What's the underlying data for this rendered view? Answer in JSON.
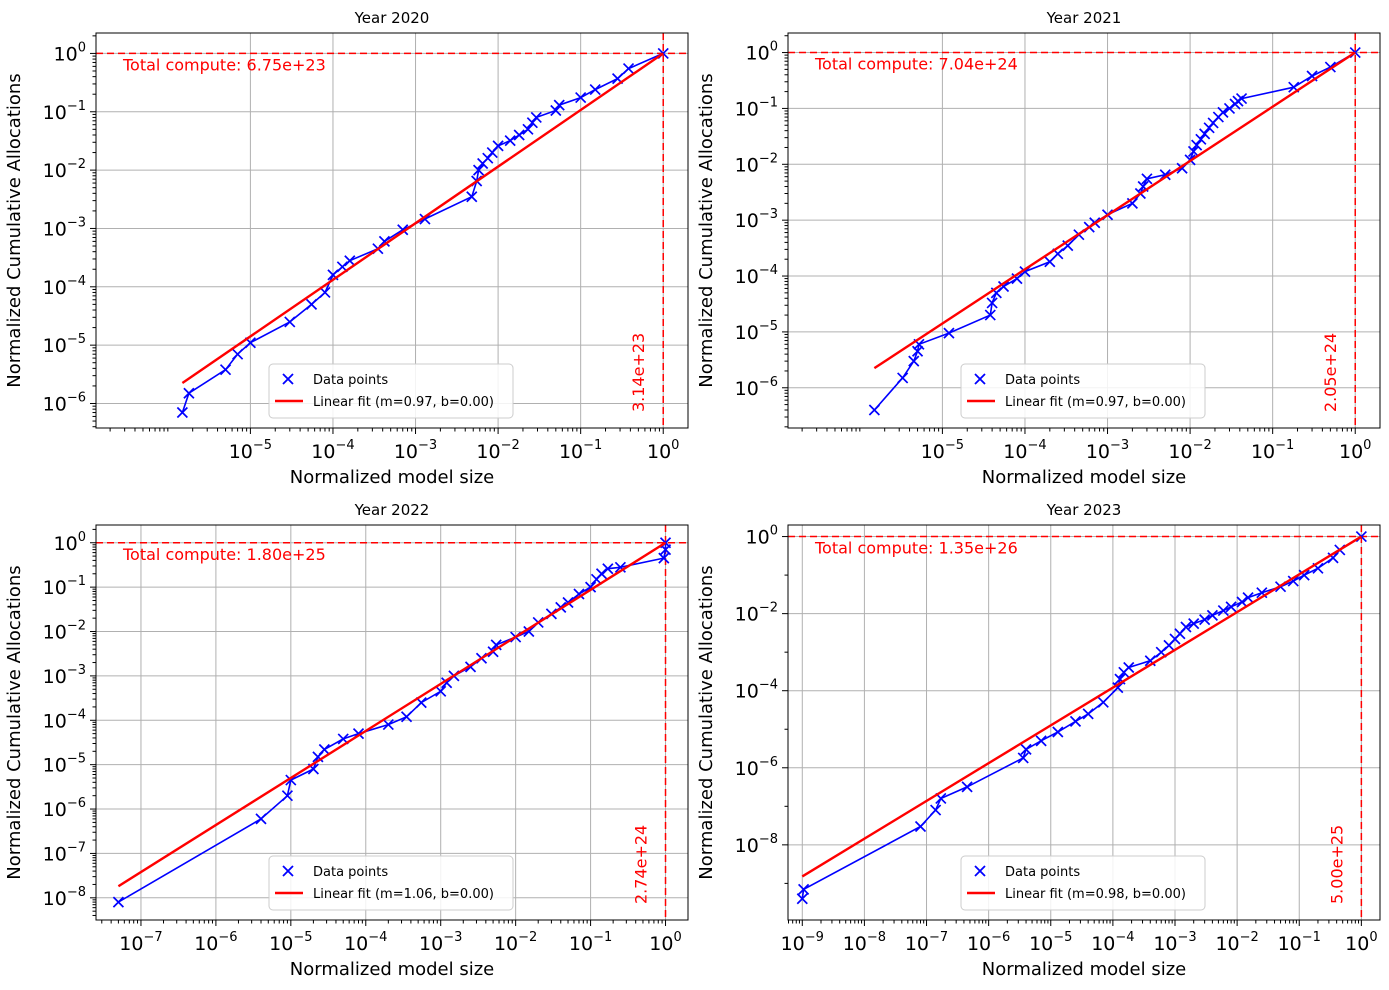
{
  "colors": {
    "data": "#0000ff",
    "fit": "#ff0000",
    "grid": "#b0b0b0",
    "axes": "#000000"
  },
  "chart_data": [
    {
      "type": "scatter",
      "title": "Year 2020",
      "xlabel": "Normalized model size",
      "ylabel": "Normalized Cumulative Allocations",
      "xscale": "log",
      "yscale": "log",
      "xlim_exp": [
        -6.87,
        0.3
      ],
      "ylim_exp": [
        -6.42,
        0.35
      ],
      "xticks_exp": [
        -5,
        -4,
        -3,
        -2,
        -1,
        0
      ],
      "yticks_exp": [
        -6,
        -5,
        -4,
        -3,
        -2,
        -1,
        0
      ],
      "grid": true,
      "series": [
        {
          "name": "Data points",
          "marker": "x",
          "x": [
            1.5e-06,
            1.8e-06,
            5e-06,
            7e-06,
            1e-05,
            3e-05,
            5.5e-05,
            8e-05,
            0.0001,
            0.00013,
            0.00016,
            0.00035,
            0.00042,
            0.0007,
            0.0013,
            0.0048,
            0.0055,
            0.0058,
            0.0065,
            0.0075,
            0.0085,
            0.01,
            0.014,
            0.018,
            0.023,
            0.026,
            0.029,
            0.05,
            0.055,
            0.1,
            0.15,
            0.28,
            0.38,
            1.0
          ],
          "y": [
            7e-07,
            1.5e-06,
            3.8e-06,
            7e-06,
            1.1e-05,
            2.5e-05,
            5e-05,
            8e-05,
            0.00016,
            0.00022,
            0.00028,
            0.00045,
            0.0006,
            0.00095,
            0.00145,
            0.0035,
            0.0065,
            0.01,
            0.013,
            0.016,
            0.02,
            0.026,
            0.032,
            0.04,
            0.05,
            0.065,
            0.08,
            0.105,
            0.13,
            0.175,
            0.24,
            0.37,
            0.55,
            1.0
          ]
        },
        {
          "name": "Linear fit (m=0.97, b=0.00)",
          "m": 0.97,
          "b": 0.0,
          "x_range": [
            1.5e-06,
            1.0
          ]
        }
      ],
      "hline": 1.0,
      "vline": 1.0,
      "total_compute_label": "Total compute: 6.75e+23",
      "vline_label": "3.14e+23",
      "legend": [
        "Data points",
        "Linear fit (m=0.97, b=0.00)"
      ],
      "legend_position": "lower-center"
    },
    {
      "type": "scatter",
      "title": "Year 2021",
      "xlabel": "Normalized model size",
      "ylabel": "Normalized Cumulative Allocations",
      "xscale": "log",
      "yscale": "log",
      "xlim_exp": [
        -6.87,
        0.3
      ],
      "ylim_exp": [
        -6.72,
        0.35
      ],
      "xticks_exp": [
        -5,
        -4,
        -3,
        -2,
        -1,
        0
      ],
      "yticks_exp": [
        -6,
        -5,
        -4,
        -3,
        -2,
        -1,
        0
      ],
      "grid": true,
      "series": [
        {
          "name": "Data points",
          "marker": "x",
          "x": [
            1.5e-06,
            3.3e-06,
            4.5e-06,
            5e-06,
            5.2e-06,
            1.2e-05,
            3.8e-05,
            4e-05,
            4.5e-05,
            5.5e-05,
            8e-05,
            0.0001,
            0.0002,
            0.00025,
            0.00033,
            0.00045,
            0.0006,
            0.0007,
            0.001,
            0.002,
            0.0025,
            0.0027,
            0.003,
            0.005,
            0.008,
            0.01,
            0.011,
            0.012,
            0.0135,
            0.015,
            0.017,
            0.019,
            0.022,
            0.025,
            0.03,
            0.035,
            0.038,
            0.042,
            0.18,
            0.3,
            0.5,
            1.0
          ],
          "y": [
            4e-07,
            1.5e-06,
            3e-06,
            4.5e-06,
            6e-06,
            9.5e-06,
            2e-05,
            3.3e-05,
            5e-05,
            6.5e-05,
            9e-05,
            0.00012,
            0.00018,
            0.00025,
            0.00035,
            0.00055,
            0.00075,
            0.0009,
            0.00125,
            0.002,
            0.003,
            0.004,
            0.0055,
            0.0065,
            0.0085,
            0.012,
            0.017,
            0.022,
            0.028,
            0.035,
            0.045,
            0.055,
            0.07,
            0.085,
            0.1,
            0.12,
            0.135,
            0.15,
            0.24,
            0.38,
            0.55,
            1.0
          ]
        },
        {
          "name": "Linear fit (m=0.97, b=0.00)",
          "m": 0.97,
          "b": 0.0,
          "x_range": [
            1.5e-06,
            1.0
          ]
        }
      ],
      "hline": 1.0,
      "vline": 1.0,
      "total_compute_label": "Total compute: 7.04e+24",
      "vline_label": "2.05e+24",
      "legend": [
        "Data points",
        "Linear fit (m=0.97, b=0.00)"
      ],
      "legend_position": "lower-center"
    },
    {
      "type": "scatter",
      "title": "Year 2022",
      "xlabel": "Normalized model size",
      "ylabel": "Normalized Cumulative Allocations",
      "xscale": "log",
      "yscale": "log",
      "xlim_exp": [
        -7.6,
        0.3
      ],
      "ylim_exp": [
        -8.5,
        0.4
      ],
      "xticks_exp": [
        -7,
        -6,
        -5,
        -4,
        -3,
        -2,
        -1,
        0
      ],
      "yticks_exp": [
        -8,
        -7,
        -6,
        -5,
        -4,
        -3,
        -2,
        -1,
        0
      ],
      "grid": true,
      "series": [
        {
          "name": "Data points",
          "marker": "x",
          "x": [
            5e-08,
            4e-06,
            9e-06,
            1e-05,
            2e-05,
            2.3e-05,
            2.8e-05,
            5e-05,
            8e-05,
            0.0002,
            0.00035,
            0.00055,
            0.001,
            0.0012,
            0.0015,
            0.0025,
            0.0035,
            0.005,
            0.0055,
            0.01,
            0.015,
            0.02,
            0.03,
            0.04,
            0.05,
            0.07,
            0.1,
            0.12,
            0.14,
            0.17,
            0.25,
            0.95,
            1.0,
            1.0
          ],
          "y": [
            8e-09,
            6e-07,
            2e-06,
            4.5e-06,
            8e-06,
            1.5e-05,
            2.2e-05,
            3.8e-05,
            5e-05,
            8e-05,
            0.00012,
            0.00025,
            0.00045,
            0.0007,
            0.001,
            0.0016,
            0.0025,
            0.0035,
            0.005,
            0.0075,
            0.01,
            0.016,
            0.025,
            0.035,
            0.045,
            0.07,
            0.1,
            0.15,
            0.2,
            0.26,
            0.28,
            0.45,
            0.7,
            1.0
          ]
        },
        {
          "name": "Linear fit (m=1.06, b=0.00)",
          "m": 1.06,
          "b": 0.0,
          "x_range": [
            5e-08,
            1.0
          ]
        }
      ],
      "hline": 1.0,
      "vline": 1.0,
      "total_compute_label": "Total compute: 1.80e+25",
      "vline_label": "2.74e+24",
      "legend": [
        "Data points",
        "Linear fit (m=1.06, b=0.00)"
      ],
      "legend_position": "lower-center"
    },
    {
      "type": "scatter",
      "title": "Year 2023",
      "xlabel": "Normalized model size",
      "ylabel": "Normalized Cumulative Allocations",
      "xscale": "log",
      "yscale": "log",
      "xlim_exp": [
        -9.23,
        0.3
      ],
      "ylim_exp": [
        -9.95,
        0.3
      ],
      "xticks_exp": [
        -9,
        -8,
        -7,
        -6,
        -5,
        -4,
        -3,
        -2,
        -1,
        0
      ],
      "yticks_exp": [
        -8,
        -6,
        -4,
        -2,
        0
      ],
      "grid": true,
      "series": [
        {
          "name": "Data points",
          "marker": "x",
          "x": [
            1e-09,
            1.05e-09,
            8e-08,
            1.4e-07,
            1.7e-07,
            4.5e-07,
            3.6e-06,
            4e-06,
            7e-06,
            1.3e-05,
            2.5e-05,
            4e-05,
            7e-05,
            0.00012,
            0.00013,
            0.00015,
            0.00018,
            0.0004,
            0.0006,
            0.0008,
            0.001,
            0.0012,
            0.0015,
            0.002,
            0.003,
            0.004,
            0.006,
            0.008,
            0.012,
            0.015,
            0.025,
            0.05,
            0.08,
            0.12,
            0.2,
            0.35,
            0.45,
            1.0
          ],
          "y": [
            4e-10,
            7e-10,
            3e-08,
            8e-08,
            1.6e-07,
            3.2e-07,
            1.8e-06,
            3e-06,
            5e-06,
            8.5e-06,
            1.6e-05,
            2.5e-05,
            5e-05,
            0.00012,
            0.0002,
            0.0003,
            0.0004,
            0.0006,
            0.001,
            0.0015,
            0.0022,
            0.003,
            0.0045,
            0.0055,
            0.007,
            0.009,
            0.012,
            0.015,
            0.02,
            0.026,
            0.035,
            0.05,
            0.07,
            0.1,
            0.15,
            0.28,
            0.45,
            1.0
          ]
        },
        {
          "name": "Linear fit (m=0.98, b=0.00)",
          "m": 0.98,
          "b": 0.0,
          "x_range": [
            1e-09,
            1.0
          ]
        }
      ],
      "hline": 1.0,
      "vline": 1.0,
      "total_compute_label": "Total compute: 1.35e+26",
      "vline_label": "5.00e+25",
      "legend": [
        "Data points",
        "Linear fit (m=0.98, b=0.00)"
      ],
      "legend_position": "lower-center"
    }
  ]
}
